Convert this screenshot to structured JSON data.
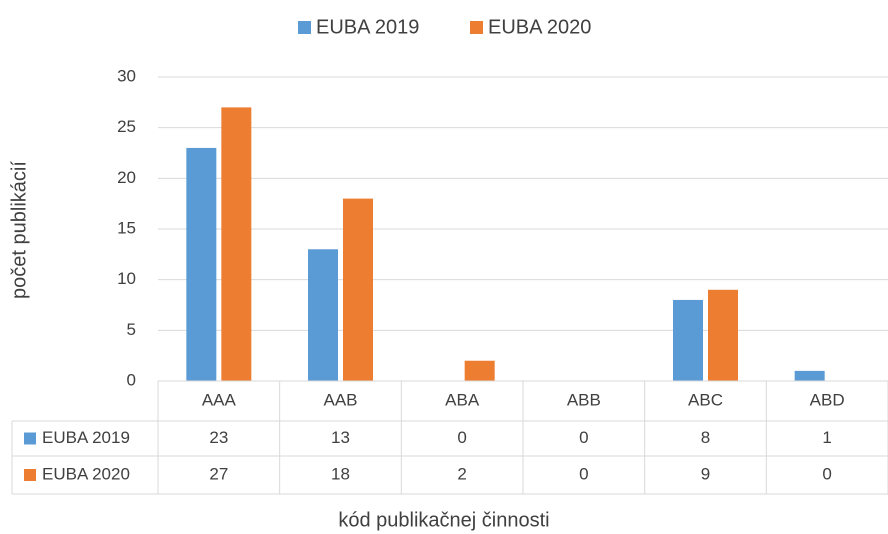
{
  "chart_data": {
    "type": "bar",
    "x_label": "kód publikačnej činnosti",
    "y_label": "počet publikácií",
    "categories": [
      "AAA",
      "AAB",
      "ABA",
      "ABB",
      "ABC",
      "ABD"
    ],
    "series": [
      {
        "name": "EUBA 2019",
        "color": "#5b9bd5",
        "values": [
          23,
          13,
          0,
          0,
          8,
          1
        ]
      },
      {
        "name": "EUBA 2020",
        "color": "#ed7d31",
        "values": [
          27,
          18,
          2,
          0,
          9,
          0
        ]
      }
    ],
    "ylim": [
      0,
      30
    ],
    "yticks": [
      0,
      5,
      10,
      15,
      20,
      25,
      30
    ],
    "grid": true,
    "legend": "top",
    "data_table": true
  }
}
